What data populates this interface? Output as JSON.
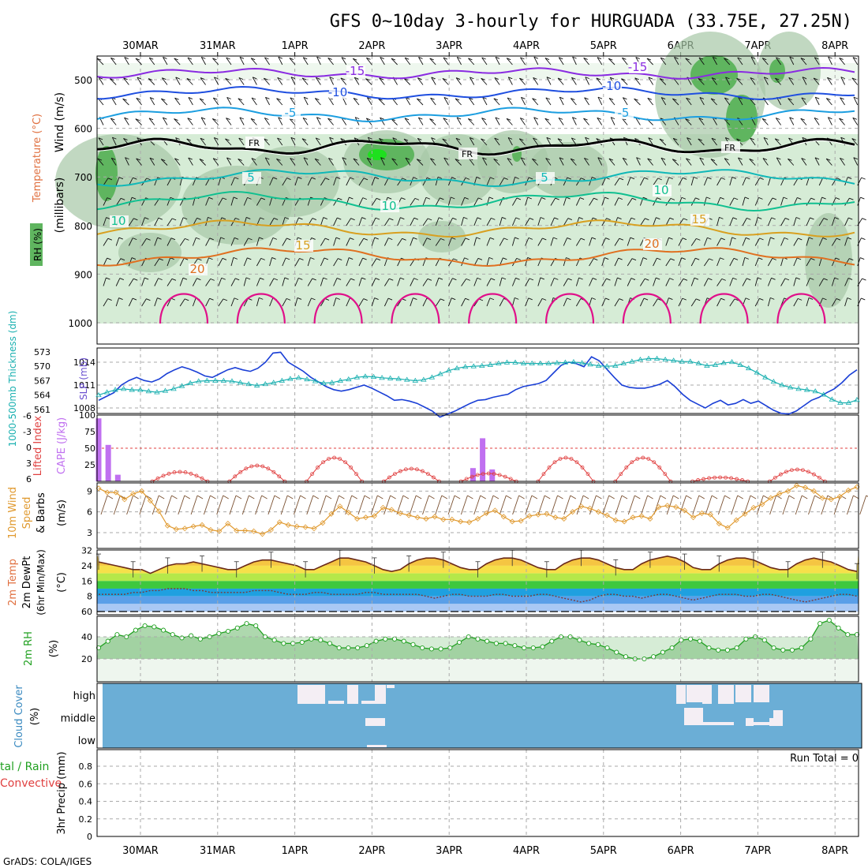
{
  "title": "GFS 0~10day 3-hourly for HURGUADA (33.75E, 27.25N)",
  "credit": "GrADS: COLA/IGES",
  "dates": [
    "30MAR",
    "31MAR",
    "1APR",
    "2APR",
    "3APR",
    "4APR",
    "5APR",
    "6APR",
    "7APR",
    "8APR"
  ],
  "colors": {
    "bg": "#ffffff",
    "frame": "#000000",
    "grid": "#aaaaaa",
    "rh_light": "#d6ecd6",
    "rh_mid": "#a7c8a7",
    "rh_dark": "#5fb55f",
    "rh_bright": "#1ee01e",
    "temp_m15": "#8a2be2",
    "temp_m10": "#1f4fe0",
    "temp_m5": "#1c9ee0",
    "temp_fr": "#000000",
    "temp_5": "#10b8b8",
    "temp_10": "#10c090",
    "temp_15": "#d8a020",
    "temp_20": "#e07020",
    "temp_25": "#e0108a",
    "slp": "#1a3fd6",
    "thickness": "#1ab0b0",
    "cape": "#c070f0",
    "lifted_index": "#e04040",
    "wind10": "#e09a30",
    "barb": "#7a5030",
    "cloud_bg": "#6baed6",
    "cloud_clear": "#f4eef4",
    "rh2m_fill": "#8cc88c",
    "rh2m_line": "#20a020"
  },
  "panels": {
    "upper": {
      "ylabel_wind": "Wind (m/s)",
      "ylabel_temp": "Temperature (°C)",
      "ylabel_rh": "RH (%)",
      "ylabel_units": "(millibars)",
      "ticks": [
        "500",
        "600",
        "700",
        "800",
        "900",
        "1000"
      ],
      "contour_labels": [
        "-15",
        "-10",
        "-5",
        "FR",
        "5",
        "10",
        "15",
        "20"
      ]
    },
    "slp": {
      "ylabel_left": "1000-500mb Thickness (dm)",
      "ylabel_right": "SLP (mb)",
      "thickness_ticks": [
        "573",
        "570",
        "567",
        "564",
        "561"
      ],
      "slp_ticks": [
        "1014",
        "1011",
        "1008"
      ]
    },
    "cape": {
      "ylabel_left": "Lifted Index",
      "ylabel_right": "CAPE (J/kg)",
      "li_ticks": [
        "-6",
        "-3",
        "0",
        "3",
        "6"
      ],
      "cape_ticks": [
        "100",
        "75",
        "50",
        "25"
      ]
    },
    "wind10": {
      "ylabel_1": "10m Wind",
      "ylabel_2": "Speed",
      "ylabel_3": "& Barbs",
      "ylabel_units": "(m/s)",
      "ticks": [
        "9",
        "6",
        "3"
      ]
    },
    "temp2m": {
      "ylabel_1": "2m Temp",
      "ylabel_2": "2m DewPt",
      "ylabel_3": "(6hr Min/Max)",
      "ylabel_units": "(°C)",
      "ticks": [
        "32",
        "24",
        "16",
        "8",
        "0"
      ],
      "tick_zero_label": "60"
    },
    "rh2m": {
      "ylabel": "2m RH",
      "ylabel_units": "(%)",
      "ticks": [
        "40",
        "20"
      ]
    },
    "cloud": {
      "ylabel": "Cloud Cover",
      "ylabel_units": "(%)",
      "levels": [
        "high",
        "middle",
        "low"
      ]
    },
    "precip": {
      "ylabel_1": "tal / Rain",
      "ylabel_2": "Convective",
      "ylabel_3": "3hr Precip (mm)",
      "ticks": [
        "0.8",
        "0.6",
        "0.4",
        "0.2",
        "0"
      ],
      "run_total": "Run Total = 0"
    }
  },
  "chart_data": {
    "type": "meteogram",
    "interval_hours": 3,
    "steps": 80,
    "slp_mb": [
      1009.0,
      1009.5,
      1010.0,
      1011.0,
      1011.6,
      1012.0,
      1011.6,
      1011.4,
      1011.8,
      1012.5,
      1013.0,
      1013.4,
      1013.1,
      1012.7,
      1012.2,
      1012.0,
      1012.5,
      1013.0,
      1013.3,
      1013.0,
      1012.8,
      1013.2,
      1014.0,
      1015.2,
      1015.3,
      1014.0,
      1013.4,
      1012.8,
      1012.0,
      1011.4,
      1010.8,
      1010.4,
      1010.2,
      1010.4,
      1010.7,
      1011.0,
      1010.6,
      1010.1,
      1009.6,
      1009.0,
      1009.1,
      1008.9,
      1008.6,
      1008.1,
      1007.6,
      1006.8,
      1007.2,
      1007.6,
      1008.1,
      1008.6,
      1009.0,
      1009.1,
      1009.4,
      1009.6,
      1009.8,
      1010.4,
      1010.8,
      1011.0,
      1011.2,
      1011.6,
      1012.6,
      1013.6,
      1014.0,
      1013.8,
      1013.4,
      1014.7,
      1014.2,
      1013.1,
      1012.0,
      1011.0,
      1010.7,
      1010.6,
      1010.6,
      1010.8,
      1011.1,
      1011.6,
      1010.8,
      1009.8,
      1009.0,
      1008.5,
      1008.0,
      1008.6,
      1009.0,
      1008.4,
      1008.6,
      1009.1,
      1008.6,
      1008.9,
      1008.3,
      1007.7,
      1007.3,
      1007.2,
      1007.6,
      1008.3,
      1009.0,
      1009.4,
      1010.0,
      1010.5,
      1011.3,
      1012.3,
      1013.0
    ],
    "thickness_dm": [
      564.0,
      564.6,
      565.1,
      565.3,
      565.1,
      565.1,
      564.8,
      564.6,
      564.9,
      565.3,
      565.9,
      566.5,
      566.9,
      567.0,
      567.0,
      567.0,
      566.9,
      566.6,
      566.3,
      566.0,
      566.3,
      566.6,
      567.0,
      567.4,
      567.6,
      567.3,
      566.9,
      566.5,
      566.6,
      567.0,
      567.3,
      567.7,
      567.9,
      567.8,
      567.6,
      567.5,
      567.4,
      567.2,
      567.0,
      567.2,
      567.7,
      568.4,
      569.1,
      569.6,
      569.9,
      570.0,
      570.1,
      570.3,
      570.6,
      570.8,
      570.8,
      570.6,
      570.6,
      570.6,
      570.6,
      570.7,
      570.8,
      570.9,
      570.7,
      570.4,
      570.1,
      570.0,
      570.1,
      570.6,
      571.0,
      571.4,
      571.6,
      571.6,
      571.4,
      571.2,
      571.0,
      571.0,
      570.6,
      570.1,
      570.3,
      570.7,
      570.9,
      570.3,
      569.6,
      568.7,
      567.7,
      566.8,
      566.1,
      565.6,
      565.3,
      565.1,
      564.8,
      564.1,
      563.1,
      562.4,
      562.4,
      563.0
    ],
    "cape_bars_jkg": [
      [
        0,
        95
      ],
      [
        1,
        55
      ],
      [
        2,
        10
      ],
      [
        39,
        20
      ],
      [
        40,
        65
      ],
      [
        41,
        18
      ]
    ],
    "wind10_ms": [
      9.4,
      8.8,
      8.8,
      7.8,
      8.6,
      9.0,
      7.6,
      6.1,
      4.0,
      3.5,
      3.6,
      3.9,
      4.1,
      3.4,
      3.2,
      4.3,
      3.3,
      3.3,
      3.2,
      2.8,
      3.4,
      4.5,
      4.1,
      3.9,
      3.8,
      3.6,
      4.4,
      5.7,
      6.8,
      5.9,
      5.0,
      5.2,
      5.4,
      6.6,
      6.3,
      5.8,
      5.5,
      5.2,
      5.0,
      5.3,
      4.9,
      4.9,
      4.6,
      4.5,
      5.0,
      5.8,
      6.2,
      5.3,
      4.6,
      4.7,
      5.4,
      5.6,
      5.7,
      5.2,
      5.0,
      6.0,
      6.8,
      6.5,
      6.0,
      5.5,
      4.8,
      4.6,
      5.2,
      5.4,
      5.0,
      6.7,
      6.9,
      6.7,
      6.2,
      5.2,
      5.8,
      5.6,
      4.3,
      3.7,
      4.8,
      5.7,
      6.6,
      7.1,
      8.0,
      8.6,
      9.0,
      9.8,
      9.5,
      9.0,
      8.0,
      7.8,
      8.2,
      9.1,
      9.6
    ],
    "temp2m_c": [
      26,
      25,
      24,
      23,
      22,
      22,
      20,
      22,
      24,
      25,
      25,
      26,
      25,
      24,
      23,
      22,
      22,
      24,
      26,
      27,
      27,
      26,
      25,
      24,
      22,
      22,
      24,
      26,
      28,
      28,
      27,
      26,
      24,
      22,
      21,
      22,
      25,
      27,
      28,
      28,
      27,
      25,
      23,
      22,
      22,
      25,
      27,
      28,
      28,
      27,
      25,
      23,
      22,
      22,
      25,
      27,
      28,
      28,
      27,
      25,
      23,
      22,
      22,
      25,
      27,
      28,
      29,
      28,
      26,
      23,
      22,
      22,
      25,
      27,
      28,
      28,
      27,
      25,
      23,
      22,
      22,
      25,
      27,
      28,
      27,
      26,
      24,
      22,
      21
    ],
    "dewpt2m_c": [
      9,
      9,
      9,
      9,
      10,
      10,
      11,
      11,
      12,
      12,
      12,
      11,
      11,
      10,
      10,
      10,
      10,
      10,
      11,
      11,
      11,
      10,
      9,
      9,
      9,
      10,
      10,
      9,
      9,
      9,
      9,
      10,
      10,
      9,
      9,
      9,
      9,
      9,
      8,
      7,
      8,
      9,
      9,
      8,
      8,
      8,
      9,
      9,
      8,
      8,
      8,
      9,
      9,
      8,
      7,
      6,
      5,
      6,
      8,
      9,
      9,
      8,
      8,
      7,
      8,
      9,
      9,
      8,
      7,
      6,
      7,
      8,
      9,
      9,
      9,
      8,
      8,
      9,
      9,
      8,
      7,
      6,
      5,
      6,
      7,
      8,
      9,
      9,
      8
    ],
    "rh2m_pct": [
      30,
      36,
      42,
      40,
      46,
      50,
      49,
      46,
      42,
      39,
      41,
      38,
      40,
      43,
      45,
      48,
      52,
      50,
      40,
      37,
      34,
      34,
      35,
      38,
      37,
      34,
      30,
      30,
      30,
      32,
      36,
      38,
      38,
      36,
      33,
      30,
      29,
      29,
      30,
      35,
      40,
      38,
      36,
      34,
      34,
      32,
      30,
      30,
      31,
      36,
      40,
      40,
      37,
      34,
      33,
      30,
      26,
      22,
      20,
      20,
      22,
      26,
      30,
      37,
      38,
      36,
      30,
      28,
      28,
      30,
      38,
      40,
      37,
      30,
      28,
      28,
      30,
      38,
      52,
      55,
      48,
      42,
      42
    ]
  }
}
